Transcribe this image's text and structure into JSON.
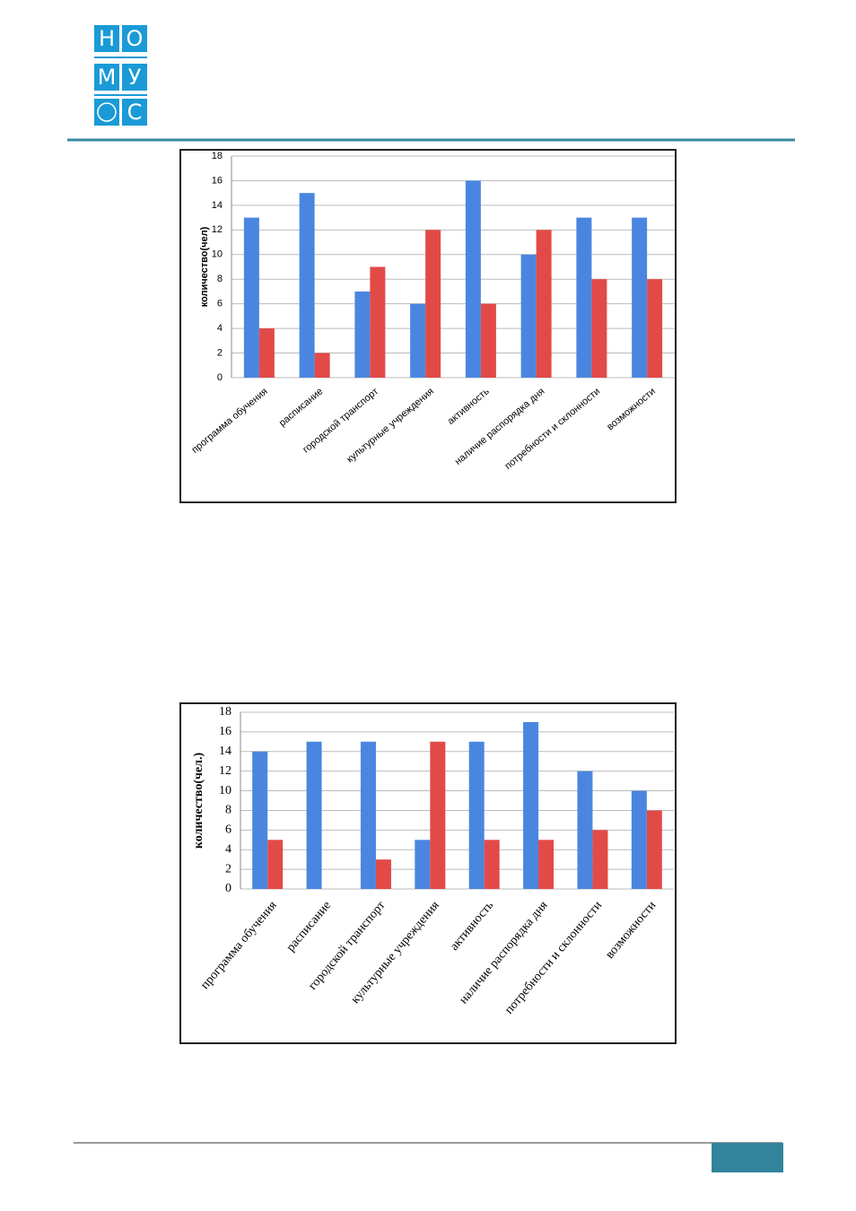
{
  "logo": {
    "letters": [
      "Н",
      "О",
      "М",
      "У",
      "С"
    ]
  },
  "chart_data": [
    {
      "type": "bar",
      "y_label": "количество(чел)",
      "categories": [
        "программа обучения",
        "расписание",
        "городской транспорт",
        "культурные учреждения",
        "активность",
        "наличие распорядка дня",
        "потребности и склонности",
        "возможности"
      ],
      "series": [
        {
          "color": "#4a86e0",
          "values": [
            13,
            15,
            7,
            6,
            16,
            10,
            13,
            13
          ]
        },
        {
          "color": "#e24a48",
          "values": [
            4,
            2,
            9,
            12,
            6,
            12,
            8,
            8
          ]
        }
      ],
      "ylim": [
        0,
        18
      ],
      "yticks": [
        0,
        2,
        4,
        6,
        8,
        10,
        12,
        14,
        16,
        18
      ],
      "grid": true
    },
    {
      "type": "bar",
      "y_label": "количество(чел.)",
      "categories": [
        "программа обучения",
        "расписание",
        "городской транспорт",
        "культурные учреждения",
        "активность",
        "наличие распорядка дня",
        "потребности и склонности",
        "возможности"
      ],
      "series": [
        {
          "color": "#4a86e0",
          "values": [
            14,
            15,
            15,
            5,
            15,
            17,
            12,
            10
          ]
        },
        {
          "color": "#e24a48",
          "values": [
            5,
            0,
            3,
            15,
            5,
            5,
            6,
            8
          ]
        }
      ],
      "ylim": [
        0,
        18
      ],
      "yticks": [
        0,
        2,
        4,
        6,
        8,
        10,
        12,
        14,
        16,
        18
      ],
      "grid": true
    }
  ]
}
